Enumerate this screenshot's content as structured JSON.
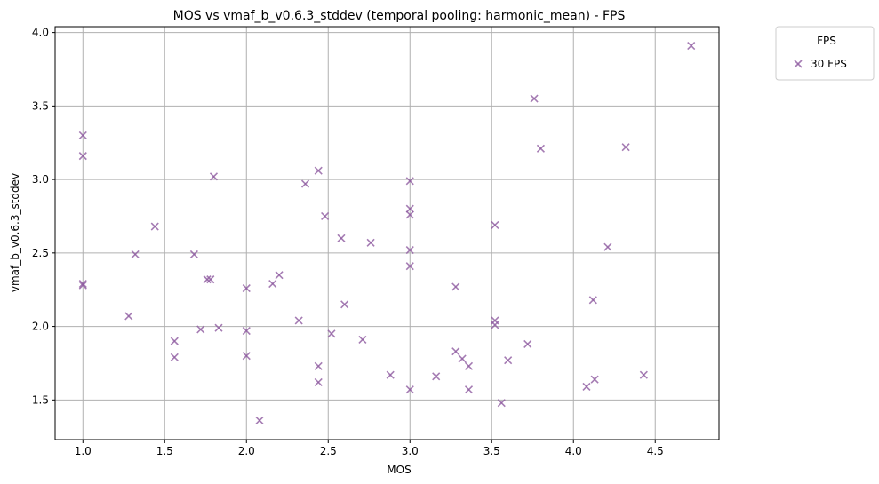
{
  "chart_data": {
    "type": "scatter",
    "title": "MOS vs vmaf_b_v0.6.3_stddev (temporal pooling: harmonic_mean) - FPS",
    "xlabel": "MOS",
    "ylabel": "vmaf_b_v0.6.3_stddev",
    "xlim": [
      0.83,
      4.89
    ],
    "ylim": [
      1.23,
      4.04
    ],
    "xticks": [
      1.0,
      1.5,
      2.0,
      2.5,
      3.0,
      3.5,
      4.0,
      4.5
    ],
    "xtick_labels": [
      "1.0",
      "1.5",
      "2.0",
      "2.5",
      "3.0",
      "3.5",
      "4.0",
      "4.5"
    ],
    "yticks": [
      1.5,
      2.0,
      2.5,
      3.0,
      3.5,
      4.0
    ],
    "ytick_labels": [
      "1.5",
      "2.0",
      "2.5",
      "3.0",
      "3.5",
      "4.0"
    ],
    "grid": true,
    "marker": "x",
    "legend": {
      "title": "FPS",
      "placement": "outside-top-right"
    },
    "series": [
      {
        "name": "30 FPS",
        "color": "#8e5ba0",
        "points": [
          [
            1.0,
            3.3
          ],
          [
            1.0,
            3.16
          ],
          [
            1.0,
            2.29
          ],
          [
            1.0,
            2.28
          ],
          [
            1.28,
            2.07
          ],
          [
            1.32,
            2.49
          ],
          [
            1.44,
            2.68
          ],
          [
            1.56,
            1.9
          ],
          [
            1.56,
            1.79
          ],
          [
            1.68,
            2.49
          ],
          [
            1.72,
            1.98
          ],
          [
            1.76,
            2.32
          ],
          [
            1.78,
            2.32
          ],
          [
            1.8,
            3.02
          ],
          [
            1.83,
            1.99
          ],
          [
            2.0,
            2.26
          ],
          [
            2.0,
            1.97
          ],
          [
            2.0,
            1.8
          ],
          [
            2.08,
            1.36
          ],
          [
            2.16,
            2.29
          ],
          [
            2.2,
            2.35
          ],
          [
            2.32,
            2.04
          ],
          [
            2.36,
            2.97
          ],
          [
            2.44,
            3.06
          ],
          [
            2.44,
            1.73
          ],
          [
            2.44,
            1.62
          ],
          [
            2.48,
            2.75
          ],
          [
            2.52,
            1.95
          ],
          [
            2.58,
            2.6
          ],
          [
            2.6,
            2.15
          ],
          [
            2.71,
            1.91
          ],
          [
            2.76,
            2.57
          ],
          [
            2.88,
            1.67
          ],
          [
            3.0,
            2.99
          ],
          [
            3.0,
            2.8
          ],
          [
            3.0,
            2.76
          ],
          [
            3.0,
            2.52
          ],
          [
            3.0,
            2.41
          ],
          [
            3.0,
            1.57
          ],
          [
            3.16,
            1.66
          ],
          [
            3.28,
            2.27
          ],
          [
            3.28,
            1.83
          ],
          [
            3.32,
            1.78
          ],
          [
            3.36,
            1.73
          ],
          [
            3.36,
            1.57
          ],
          [
            3.52,
            2.69
          ],
          [
            3.52,
            2.04
          ],
          [
            3.52,
            2.01
          ],
          [
            3.56,
            1.48
          ],
          [
            3.6,
            1.77
          ],
          [
            3.72,
            1.88
          ],
          [
            3.76,
            3.55
          ],
          [
            3.8,
            3.21
          ],
          [
            4.08,
            1.59
          ],
          [
            4.12,
            2.18
          ],
          [
            4.13,
            1.64
          ],
          [
            4.21,
            2.54
          ],
          [
            4.32,
            3.22
          ],
          [
            4.43,
            1.67
          ],
          [
            4.72,
            3.91
          ]
        ]
      }
    ]
  }
}
